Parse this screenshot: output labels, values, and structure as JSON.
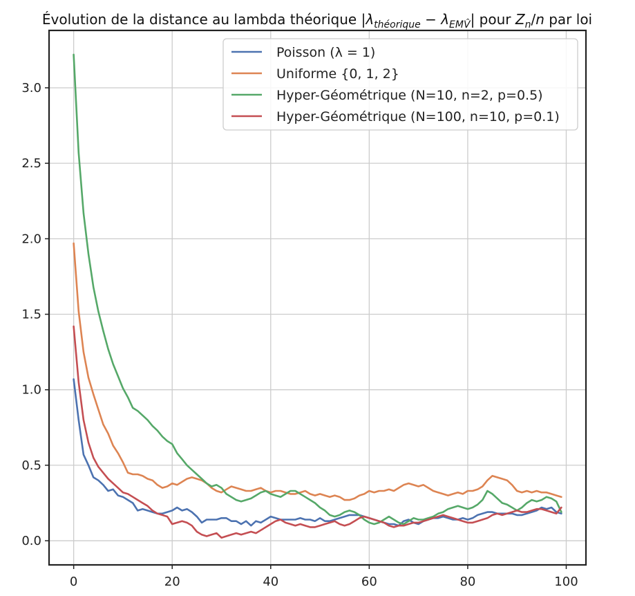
{
  "chart_data": {
    "type": "line",
    "title_prefix": "Évolution de la distance au lambda théorique |",
    "title_math1": "λ",
    "title_sub1": "théorique",
    "title_minus": " − ",
    "title_math2": "λ",
    "title_sub2": "EMV̂",
    "title_suffix1": "| pour ",
    "title_math3": "Z",
    "title_sub3": "n",
    "title_slash": "/",
    "title_math4": "n",
    "title_suffix2": " par loi",
    "xlabel": "",
    "ylabel": "",
    "xlim": [
      -5,
      104
    ],
    "ylim": [
      -0.16,
      3.38
    ],
    "xticks": [
      0,
      20,
      40,
      60,
      80,
      100
    ],
    "xtick_labels": [
      "0",
      "20",
      "40",
      "60",
      "80",
      "100"
    ],
    "yticks": [
      0.0,
      0.5,
      1.0,
      1.5,
      2.0,
      2.5,
      3.0
    ],
    "ytick_labels": [
      "0.0",
      "0.5",
      "1.0",
      "1.5",
      "2.0",
      "2.5",
      "3.0"
    ],
    "grid": true,
    "legend_position": "top-right",
    "series": [
      {
        "name": "Poisson (λ = 1)",
        "color": "#4c72b0",
        "values": [
          1.07,
          0.8,
          0.57,
          0.5,
          0.42,
          0.4,
          0.37,
          0.33,
          0.34,
          0.3,
          0.29,
          0.27,
          0.25,
          0.2,
          0.21,
          0.2,
          0.19,
          0.18,
          0.18,
          0.19,
          0.2,
          0.22,
          0.2,
          0.21,
          0.19,
          0.16,
          0.12,
          0.14,
          0.14,
          0.14,
          0.15,
          0.15,
          0.13,
          0.13,
          0.11,
          0.13,
          0.1,
          0.13,
          0.12,
          0.14,
          0.16,
          0.15,
          0.14,
          0.14,
          0.14,
          0.14,
          0.15,
          0.14,
          0.14,
          0.13,
          0.15,
          0.13,
          0.13,
          0.14,
          0.15,
          0.16,
          0.17,
          0.17,
          0.17,
          0.16,
          0.15,
          0.14,
          0.13,
          0.12,
          0.11,
          0.11,
          0.1,
          0.13,
          0.14,
          0.12,
          0.11,
          0.13,
          0.14,
          0.15,
          0.15,
          0.16,
          0.15,
          0.14,
          0.14,
          0.15,
          0.14,
          0.15,
          0.17,
          0.18,
          0.19,
          0.19,
          0.18,
          0.18,
          0.18,
          0.18,
          0.17,
          0.17,
          0.18,
          0.19,
          0.2,
          0.22,
          0.21,
          0.22,
          0.19,
          0.18
        ]
      },
      {
        "name": "Uniforme {0, 1, 2}",
        "color": "#dd8452",
        "values": [
          1.97,
          1.52,
          1.25,
          1.08,
          0.97,
          0.87,
          0.77,
          0.71,
          0.63,
          0.58,
          0.52,
          0.45,
          0.44,
          0.44,
          0.43,
          0.41,
          0.4,
          0.37,
          0.35,
          0.36,
          0.38,
          0.37,
          0.39,
          0.41,
          0.42,
          0.41,
          0.4,
          0.38,
          0.35,
          0.33,
          0.32,
          0.34,
          0.36,
          0.35,
          0.34,
          0.33,
          0.33,
          0.34,
          0.35,
          0.33,
          0.32,
          0.33,
          0.33,
          0.32,
          0.31,
          0.31,
          0.32,
          0.33,
          0.31,
          0.3,
          0.31,
          0.3,
          0.29,
          0.3,
          0.29,
          0.27,
          0.27,
          0.28,
          0.3,
          0.31,
          0.33,
          0.32,
          0.33,
          0.33,
          0.34,
          0.33,
          0.35,
          0.37,
          0.38,
          0.37,
          0.36,
          0.37,
          0.35,
          0.33,
          0.32,
          0.31,
          0.3,
          0.31,
          0.32,
          0.31,
          0.33,
          0.33,
          0.34,
          0.36,
          0.4,
          0.43,
          0.42,
          0.41,
          0.4,
          0.37,
          0.33,
          0.32,
          0.33,
          0.32,
          0.33,
          0.32,
          0.32,
          0.31,
          0.3,
          0.29
        ]
      },
      {
        "name": "Hyper-Géométrique (N=10, n=2, p=0.5)",
        "color": "#55a868",
        "values": [
          3.22,
          2.57,
          2.17,
          1.9,
          1.68,
          1.52,
          1.39,
          1.27,
          1.17,
          1.09,
          1.01,
          0.95,
          0.88,
          0.86,
          0.83,
          0.8,
          0.76,
          0.73,
          0.69,
          0.66,
          0.64,
          0.58,
          0.54,
          0.5,
          0.47,
          0.44,
          0.41,
          0.38,
          0.36,
          0.37,
          0.35,
          0.31,
          0.29,
          0.27,
          0.26,
          0.27,
          0.28,
          0.3,
          0.32,
          0.33,
          0.31,
          0.3,
          0.29,
          0.31,
          0.33,
          0.33,
          0.31,
          0.29,
          0.27,
          0.25,
          0.22,
          0.2,
          0.17,
          0.16,
          0.17,
          0.19,
          0.2,
          0.19,
          0.17,
          0.14,
          0.12,
          0.11,
          0.12,
          0.14,
          0.16,
          0.14,
          0.12,
          0.11,
          0.13,
          0.15,
          0.14,
          0.14,
          0.15,
          0.16,
          0.18,
          0.19,
          0.21,
          0.22,
          0.23,
          0.22,
          0.21,
          0.22,
          0.24,
          0.27,
          0.33,
          0.31,
          0.28,
          0.25,
          0.24,
          0.22,
          0.2,
          0.22,
          0.25,
          0.27,
          0.26,
          0.27,
          0.29,
          0.28,
          0.26,
          0.19
        ]
      },
      {
        "name": "Hyper-Géométrique (N=100, n=10, p=0.1)",
        "color": "#c44e52",
        "values": [
          1.42,
          1.05,
          0.8,
          0.65,
          0.55,
          0.49,
          0.45,
          0.41,
          0.38,
          0.35,
          0.32,
          0.31,
          0.29,
          0.27,
          0.25,
          0.23,
          0.2,
          0.18,
          0.17,
          0.16,
          0.11,
          0.12,
          0.13,
          0.12,
          0.1,
          0.06,
          0.04,
          0.03,
          0.04,
          0.05,
          0.02,
          0.03,
          0.04,
          0.05,
          0.04,
          0.05,
          0.06,
          0.05,
          0.07,
          0.09,
          0.11,
          0.13,
          0.14,
          0.12,
          0.11,
          0.1,
          0.11,
          0.1,
          0.09,
          0.09,
          0.1,
          0.11,
          0.12,
          0.13,
          0.11,
          0.1,
          0.11,
          0.13,
          0.15,
          0.16,
          0.15,
          0.14,
          0.13,
          0.12,
          0.1,
          0.09,
          0.1,
          0.1,
          0.11,
          0.12,
          0.12,
          0.13,
          0.14,
          0.15,
          0.16,
          0.17,
          0.16,
          0.15,
          0.14,
          0.13,
          0.12,
          0.12,
          0.13,
          0.14,
          0.15,
          0.17,
          0.18,
          0.17,
          0.18,
          0.19,
          0.2,
          0.19,
          0.19,
          0.2,
          0.21,
          0.21,
          0.2,
          0.19,
          0.18,
          0.22
        ]
      }
    ]
  }
}
